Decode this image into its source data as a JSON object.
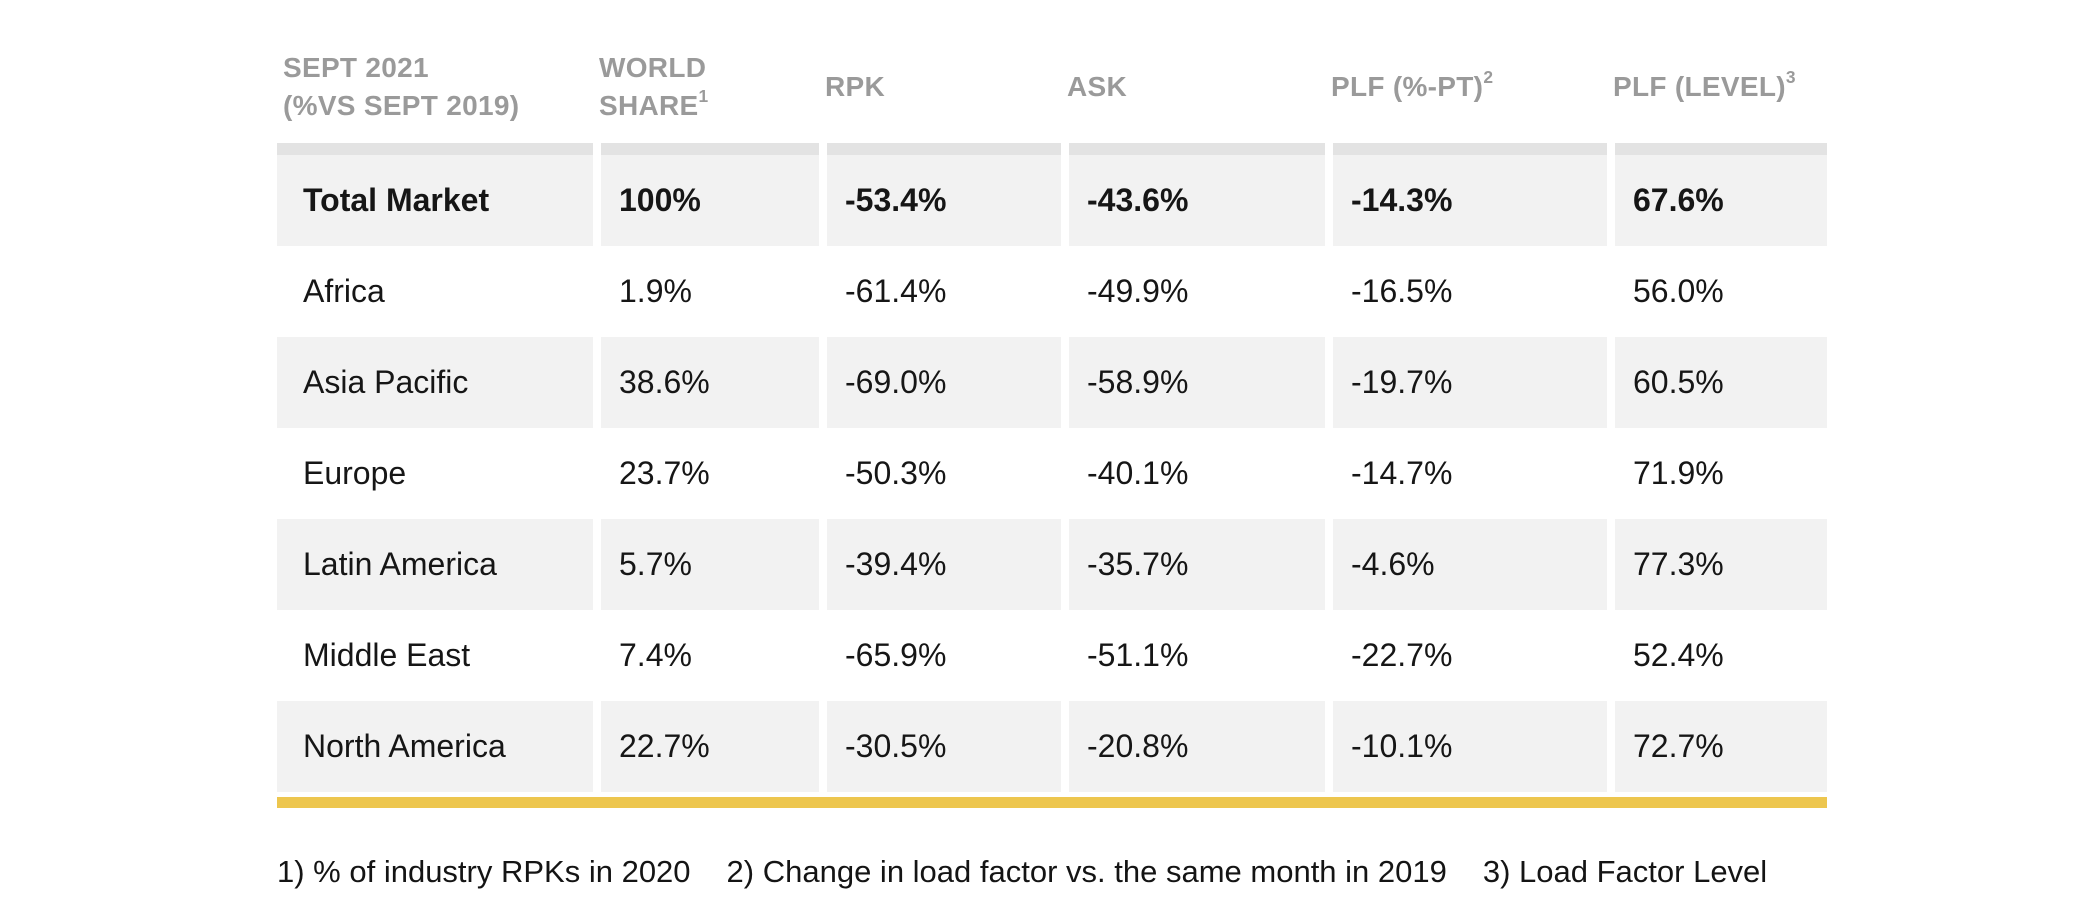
{
  "header": {
    "cols": [
      {
        "line1": "SEPT 2021",
        "sup1": "",
        "line2": "(%VS SEPT 2019)",
        "sup2": ""
      },
      {
        "line1": "WORLD",
        "sup1": "",
        "line2": "SHARE",
        "sup2": "1"
      },
      {
        "line1": "RPK",
        "sup1": "",
        "line2": "",
        "sup2": ""
      },
      {
        "line1": "ASK",
        "sup1": "",
        "line2": "",
        "sup2": ""
      },
      {
        "line1": "PLF (%-PT)",
        "sup1": "2",
        "line2": "",
        "sup2": ""
      },
      {
        "line1": "PLF (LEVEL)",
        "sup1": "3",
        "line2": "",
        "sup2": ""
      }
    ]
  },
  "chart_data": {
    "type": "table",
    "title": "SEPT 2021 (%VS SEPT 2019)",
    "columns": [
      "SEPT 2021 (%VS SEPT 2019)",
      "WORLD SHARE¹",
      "RPK",
      "ASK",
      "PLF (%-PT)²",
      "PLF (LEVEL)³"
    ],
    "rows": [
      {
        "region": "Total Market",
        "world_share": "100%",
        "rpk": "-53.4%",
        "ask": "-43.6%",
        "plf_pt": "-14.3%",
        "plf_level": "67.6%"
      },
      {
        "region": "Africa",
        "world_share": "1.9%",
        "rpk": "-61.4%",
        "ask": "-49.9%",
        "plf_pt": "-16.5%",
        "plf_level": "56.0%"
      },
      {
        "region": "Asia Pacific",
        "world_share": "38.6%",
        "rpk": "-69.0%",
        "ask": "-58.9%",
        "plf_pt": "-19.7%",
        "plf_level": "60.5%"
      },
      {
        "region": "Europe",
        "world_share": "23.7%",
        "rpk": "-50.3%",
        "ask": "-40.1%",
        "plf_pt": "-14.7%",
        "plf_level": "71.9%"
      },
      {
        "region": "Latin America",
        "world_share": "5.7%",
        "rpk": "-39.4%",
        "ask": "-35.7%",
        "plf_pt": "-4.6%",
        "plf_level": "77.3%"
      },
      {
        "region": "Middle East",
        "world_share": "7.4%",
        "rpk": "-65.9%",
        "ask": "-51.1%",
        "plf_pt": "-22.7%",
        "plf_level": "52.4%"
      },
      {
        "region": "North America",
        "world_share": "22.7%",
        "rpk": "-30.5%",
        "ask": "-20.8%",
        "plf_pt": "-10.1%",
        "plf_level": "72.7%"
      }
    ]
  },
  "footnotes": [
    "1) % of industry RPKs in 2020",
    "2) Change in load factor vs. the same month in 2019",
    "3) Load Factor Level"
  ],
  "colors": {
    "header_text": "#9a9a9a",
    "body_text": "#161616",
    "row_shade": "#f2f2f2",
    "header_stripe": "#e3e3e3",
    "accent_bar": "#edc64e"
  }
}
